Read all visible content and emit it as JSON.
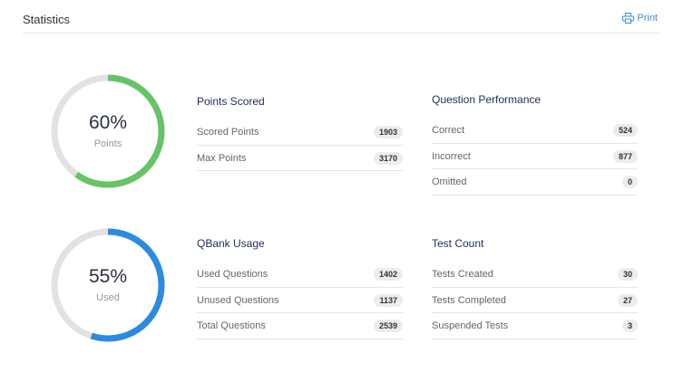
{
  "header": {
    "title": "Statistics",
    "print_label": "Print"
  },
  "colors": {
    "green": "#66c466",
    "blue": "#2b8be0",
    "track": "#e2e2e2"
  },
  "donuts": [
    {
      "percent_text": "60%",
      "percent": 60,
      "label": "Points",
      "color": "#66c466"
    },
    {
      "percent_text": "55%",
      "percent": 55,
      "label": "Used",
      "color": "#2b8be0"
    }
  ],
  "blocks": [
    {
      "title": "Points Scored",
      "rows": [
        {
          "label": "Scored Points",
          "value": "1903"
        },
        {
          "label": "Max Points",
          "value": "3170"
        }
      ]
    },
    {
      "title": "Question Performance",
      "rows": [
        {
          "label": "Correct",
          "value": "524"
        },
        {
          "label": "Incorrect",
          "value": "877"
        },
        {
          "label": "Omitted",
          "value": "0"
        }
      ]
    },
    {
      "title": "QBank Usage",
      "rows": [
        {
          "label": "Used Questions",
          "value": "1402"
        },
        {
          "label": "Unused Questions",
          "value": "1137"
        },
        {
          "label": "Total Questions",
          "value": "2539"
        }
      ]
    },
    {
      "title": "Test Count",
      "rows": [
        {
          "label": "Tests Created",
          "value": "30"
        },
        {
          "label": "Tests Completed",
          "value": "27"
        },
        {
          "label": "Suspended Tests",
          "value": "3"
        }
      ]
    }
  ]
}
